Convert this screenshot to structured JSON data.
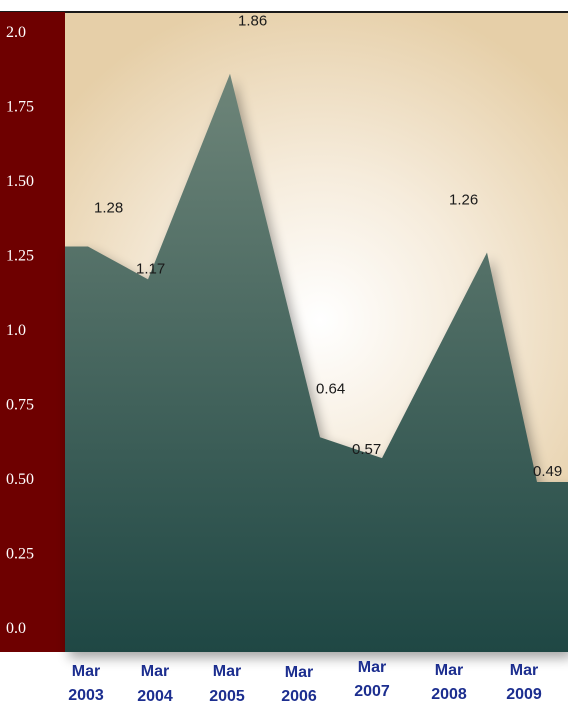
{
  "chart_data": {
    "type": "area",
    "title": "",
    "xlabel": "",
    "ylabel": "",
    "ylim": [
      0,
      2.0
    ],
    "y_ticks": [
      "0.0",
      "0.25",
      "0.50",
      "0.75",
      "1.0",
      "1.25",
      "1.50",
      "1.75",
      "2.0"
    ],
    "categories": [
      [
        "Mar",
        "2003"
      ],
      [
        "Mar",
        "2004"
      ],
      [
        "Mar",
        "2005"
      ],
      [
        "Mar",
        "2006"
      ],
      [
        "Mar",
        "2007"
      ],
      [
        "Mar",
        "2008"
      ],
      [
        "Mar",
        "2009"
      ]
    ],
    "values": [
      1.28,
      1.17,
      1.86,
      0.64,
      0.57,
      1.26,
      0.49
    ],
    "data_labels": [
      "1.28",
      "1.17",
      "1.86",
      "0.64",
      "0.57",
      "1.26",
      "0.49"
    ],
    "grid": false,
    "legend": "none",
    "colors": {
      "axis_band": "#6e0000",
      "area_top": "#6e8579",
      "area_bottom": "#1f4744",
      "background_glow": "#ffffff",
      "background_edge": "#e6cfa8",
      "category_text": "#1c2e8f"
    }
  }
}
